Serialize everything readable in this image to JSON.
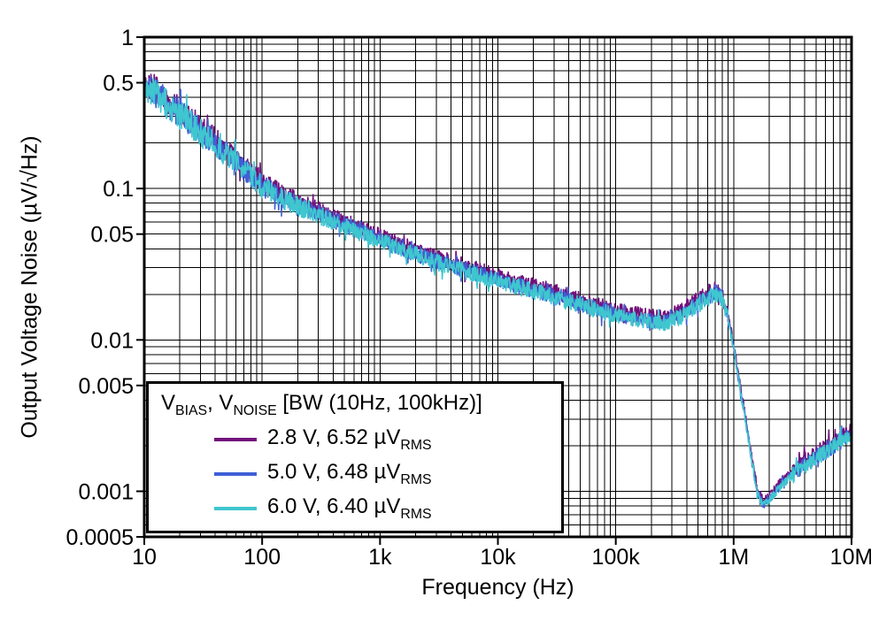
{
  "legend": {
    "title_parts": [
      "V",
      "BIAS",
      ", V",
      "NOISE",
      " [BW (10Hz, 100kHz)]"
    ],
    "entries": [
      {
        "text": "2.8 V, 6.52 µV",
        "sub": "RMS"
      },
      {
        "text": "5.0 V, 6.48 µV",
        "sub": "RMS"
      },
      {
        "text": "6.0 V, 6.40 µV",
        "sub": "RMS"
      }
    ]
  },
  "chart_data": {
    "type": "line",
    "title": "",
    "xlabel": "Frequency (Hz)",
    "ylabel": "Output Voltage Noise (µV/√Hz)",
    "x_scale": "log",
    "y_scale": "log",
    "xlim": [
      10,
      10000000
    ],
    "ylim": [
      0.0005,
      1
    ],
    "x_ticks": [
      {
        "v": 10,
        "label": "10"
      },
      {
        "v": 100,
        "label": "100"
      },
      {
        "v": 1000,
        "label": "1k"
      },
      {
        "v": 10000,
        "label": "10k"
      },
      {
        "v": 100000,
        "label": "100k"
      },
      {
        "v": 1000000,
        "label": "1M"
      },
      {
        "v": 10000000,
        "label": "10M"
      }
    ],
    "y_ticks": [
      {
        "v": 1,
        "label": "1"
      },
      {
        "v": 0.5,
        "label": "0.5"
      },
      {
        "v": 0.1,
        "label": "0.1"
      },
      {
        "v": 0.05,
        "label": "0.05"
      },
      {
        "v": 0.01,
        "label": "0.01"
      },
      {
        "v": 0.005,
        "label": "0.005"
      },
      {
        "v": 0.001,
        "label": "0.001"
      },
      {
        "v": 0.0005,
        "label": "0.0005"
      }
    ],
    "grid": "black major and minor log gridlines, both axes",
    "legend_position": "bottom-left",
    "axis_color": "#000000",
    "series": [
      {
        "name": "2.8 V, 6.52 µVRMS",
        "vbias": "2.8 V",
        "noise_rms": "6.52 µVRMS",
        "color": "#72107a",
        "seed": 101,
        "offset_dex": 0.022
      },
      {
        "name": "5.0 V, 6.48 µVRMS",
        "vbias": "5.0 V",
        "noise_rms": "6.48 µVRMS",
        "color": "#3f5fd7",
        "seed": 202,
        "offset_dex": 0.0
      },
      {
        "name": "6.0 V, 6.40 µVRMS",
        "vbias": "6.0 V",
        "noise_rms": "6.40 µVRMS",
        "color": "#3fc6cf",
        "seed": 303,
        "offset_dex": -0.008
      }
    ],
    "trend": {
      "logf": [
        1.0,
        1.2,
        1.4,
        1.6,
        1.8,
        2.0,
        2.2,
        2.4,
        2.6,
        2.8,
        3.0,
        3.2,
        3.4,
        3.6,
        3.8,
        4.0,
        4.2,
        4.4,
        4.6,
        4.8,
        5.0,
        5.2,
        5.4,
        5.55,
        5.7,
        5.8,
        5.85,
        5.9,
        5.95,
        6.0,
        6.05,
        6.1,
        6.15,
        6.2,
        6.25,
        6.3,
        6.4,
        6.5,
        6.6,
        6.8,
        7.0
      ],
      "v": [
        0.5,
        0.36,
        0.27,
        0.2,
        0.145,
        0.105,
        0.085,
        0.072,
        0.062,
        0.053,
        0.046,
        0.04,
        0.035,
        0.031,
        0.028,
        0.025,
        0.0225,
        0.0205,
        0.0185,
        0.0165,
        0.0148,
        0.0138,
        0.0132,
        0.0145,
        0.0175,
        0.0195,
        0.0205,
        0.019,
        0.0145,
        0.009,
        0.005,
        0.003,
        0.0017,
        0.001,
        0.00082,
        0.00088,
        0.0011,
        0.0013,
        0.0015,
        0.0019,
        0.0024
      ]
    },
    "noise_jitter_dex": 0.055,
    "samples_per_decade": 250
  }
}
